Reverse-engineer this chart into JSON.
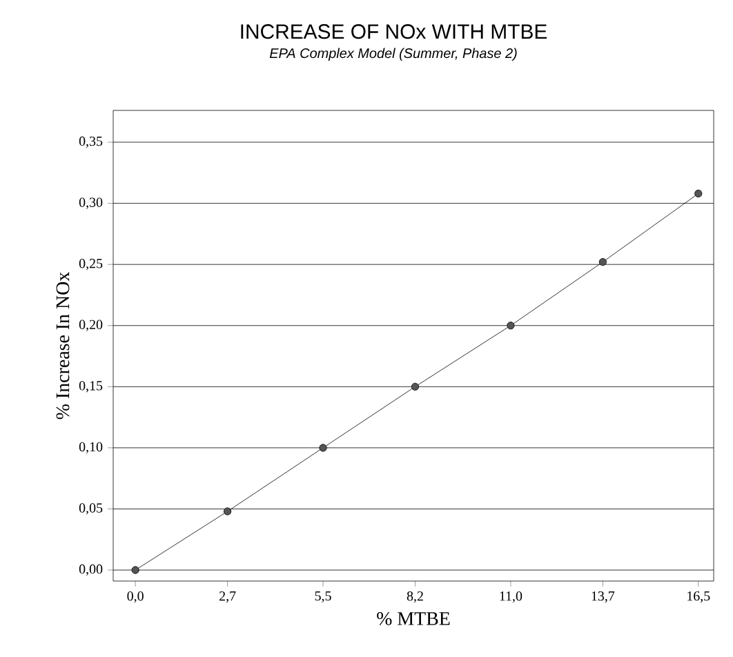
{
  "chart_data": {
    "type": "line",
    "title": "INCREASE OF NOx WITH MTBE",
    "subtitle": "EPA Complex Model (Summer, Phase 2)",
    "xlabel": "% MTBE",
    "ylabel": "% Increase In NOx",
    "x": [
      0,
      2.7,
      5.5,
      8.2,
      11.0,
      13.7,
      16.5
    ],
    "series": [
      {
        "color": "#555555",
        "values": [
          0,
          0.048,
          0.1,
          0.15,
          0.2,
          0.252,
          0.308
        ]
      }
    ],
    "xlim": [
      -0.65,
      16.95
    ],
    "ylim": [
      -0.009,
      0.376
    ],
    "xticks": [
      {
        "value": 0,
        "label": "0,0"
      },
      {
        "value": 2.7,
        "label": "2,7"
      },
      {
        "value": 5.5,
        "label": "5,5"
      },
      {
        "value": 8.2,
        "label": "8,2"
      },
      {
        "value": 11.0,
        "label": "11,0"
      },
      {
        "value": 13.7,
        "label": "13,7"
      },
      {
        "value": 16.5,
        "label": "16,5"
      }
    ],
    "yticks": [
      {
        "value": 0,
        "label": "0,00"
      },
      {
        "value": 0.05,
        "label": "0,05"
      },
      {
        "value": 0.1,
        "label": "0,10"
      },
      {
        "value": 0.15,
        "label": "0,15"
      },
      {
        "value": 0.2,
        "label": "0,20"
      },
      {
        "value": 0.25,
        "label": "0,25"
      },
      {
        "value": 0.3,
        "label": "0,30"
      },
      {
        "value": 0.35,
        "label": "0,35"
      }
    ],
    "grid": "y",
    "marker": "circle",
    "line_style": "solid"
  }
}
